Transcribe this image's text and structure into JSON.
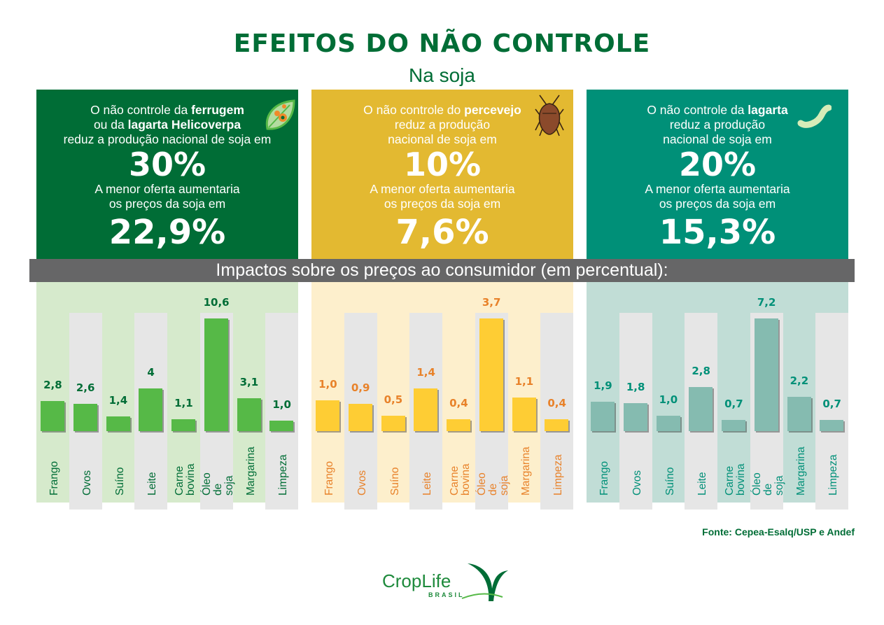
{
  "title": "EFEITOS DO NÃO CONTROLE",
  "subtitle": "Na soja",
  "banner": "Impactos sobre os preços ao consumidor (em percentual):",
  "source": "Fonte: Cepea-Esalq/USP e Andef",
  "logo": {
    "name": "CropLife",
    "sub": "BRASIL"
  },
  "colors": {
    "dark_green": "#006d36",
    "yellow": "#e3b931",
    "teal": "#009078",
    "banner": "#666667"
  },
  "panels": [
    {
      "box_color": "#006d36",
      "icon": "leaf-rust-icon",
      "intro": [
        [
          {
            "t": "O não controle da "
          },
          {
            "t": "ferrugem",
            "b": true
          }
        ],
        [
          {
            "t": "ou da "
          },
          {
            "t": "lagarta Helicoverpa",
            "b": true
          }
        ],
        [
          {
            "t": "reduz a produção nacional de soja em"
          }
        ]
      ],
      "production_loss": "30%",
      "price_text": [
        "A menor oferta aumentaria",
        "os preços da soja em"
      ],
      "price_increase": "22,9%"
    },
    {
      "box_color": "#e3b931",
      "icon": "stink-bug-icon",
      "intro": [
        [
          {
            "t": "O não controle do "
          },
          {
            "t": "percevejo",
            "b": true
          }
        ],
        [
          {
            "t": "reduz a produção"
          }
        ],
        [
          {
            "t": "nacional de soja em"
          }
        ]
      ],
      "production_loss": "10%",
      "price_text": [
        "A menor oferta aumentaria",
        "os preços da soja em"
      ],
      "price_increase": "7,6%"
    },
    {
      "box_color": "#009078",
      "icon": "caterpillar-icon",
      "intro": [
        [
          {
            "t": "O não controle da "
          },
          {
            "t": "lagarta",
            "b": true
          }
        ],
        [
          {
            "t": "reduz a produção"
          }
        ],
        [
          {
            "t": "nacional de soja em"
          }
        ]
      ],
      "production_loss": "20%",
      "price_text": [
        "A menor oferta aumentaria",
        "os preços da soja em"
      ],
      "price_increase": "15,3%"
    }
  ],
  "chart_data": [
    {
      "type": "bar",
      "categories": [
        "Frango",
        "Ovos",
        "Suíno",
        "Leite",
        "Carne bovina",
        "Óleo de soja",
        "Margarina",
        "Limpeza"
      ],
      "values": [
        2.8,
        2.6,
        1.4,
        4,
        1.1,
        10.6,
        3.1,
        1.0
      ],
      "labels": [
        "2,8",
        "2,6",
        "1,4",
        "4",
        "1,1",
        "10,6",
        "3,1",
        "1,0"
      ],
      "bar_color": "#56b947",
      "label_color": "#006d36",
      "bg_color": "#d6eacc"
    },
    {
      "type": "bar",
      "categories": [
        "Frango",
        "Ovos",
        "Suíno",
        "Leite",
        "Carne bovina",
        "Óleo de soja",
        "Margarina",
        "Limpeza"
      ],
      "values": [
        1.0,
        0.9,
        0.5,
        1.4,
        0.4,
        3.7,
        1.1,
        0.4
      ],
      "labels": [
        "1,0",
        "0,9",
        "0,5",
        "1,4",
        "0,4",
        "3,7",
        "1,1",
        "0,4"
      ],
      "bar_color": "#fecd34",
      "label_color": "#e8822a",
      "bg_color": "#fdefcc"
    },
    {
      "type": "bar",
      "categories": [
        "Frango",
        "Ovos",
        "Suíno",
        "Leite",
        "Carne bovina",
        "Óleo de soja",
        "Margarina",
        "Limpeza"
      ],
      "values": [
        1.9,
        1.8,
        1.0,
        2.8,
        0.7,
        7.2,
        2.2,
        0.7
      ],
      "labels": [
        "1,9",
        "1,8",
        "1,0",
        "2,8",
        "0,7",
        "7,2",
        "2,2",
        "0,7"
      ],
      "bar_color": "#85bbb0",
      "label_color": "#009078",
      "bg_color": "#c1ddd6"
    }
  ]
}
